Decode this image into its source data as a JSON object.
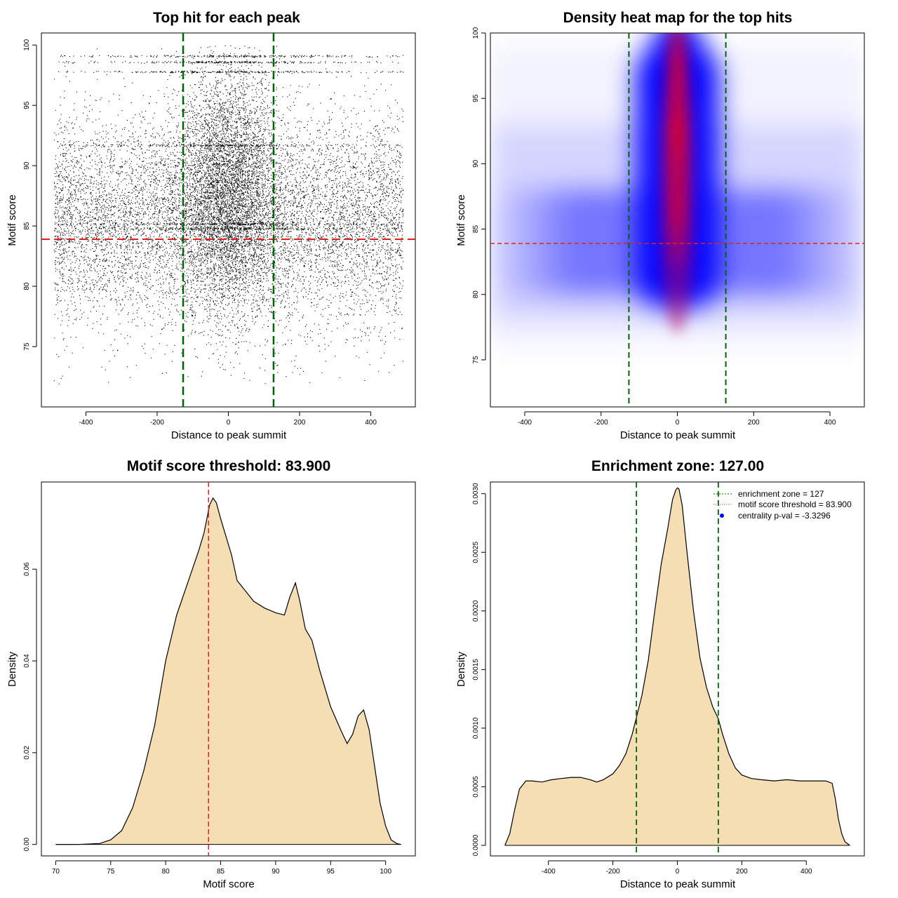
{
  "colors": {
    "threshold_line": "#e02020",
    "zone_line": "#006400",
    "density_fill": "#f5deb3",
    "heat_low": "#ffffff",
    "heat_mid": "#0000ff",
    "heat_high": "#ff0000",
    "points": "#000000"
  },
  "chart_data": [
    {
      "id": "scatter",
      "type": "scatter",
      "title": "Top hit for each peak",
      "xlabel": "Distance to peak summit",
      "ylabel": "Motif score",
      "xlim": [
        -525,
        525
      ],
      "ylim": [
        70,
        101
      ],
      "xticks": [
        "-400",
        "-200",
        "0",
        "200",
        "400"
      ],
      "xtick_values": [
        -400,
        -200,
        0,
        200,
        400
      ],
      "yticks": [
        "75",
        "80",
        "85",
        "90",
        "95",
        "100"
      ],
      "ytick_values": [
        75,
        80,
        85,
        90,
        95,
        100
      ],
      "hline": 83.9,
      "vlines": [
        -127,
        127
      ],
      "x_range_of_points": [
        -490,
        490
      ],
      "y_range_of_points": [
        71.9,
        100
      ],
      "dense_center_band": [
        -127,
        127
      ],
      "frequent_score_rows": [
        99.1,
        98.6,
        97.8,
        91.7,
        85.2,
        84.8
      ],
      "grid": false
    },
    {
      "id": "heatmap",
      "type": "heatmap",
      "title": "Density heat map for the top hits",
      "xlabel": "Distance to peak summit",
      "ylabel": "Motif score",
      "xlim": [
        -490,
        490
      ],
      "ylim": [
        71.4,
        100
      ],
      "xticks": [
        "-400",
        "-200",
        "0",
        "200",
        "400"
      ],
      "xtick_values": [
        -400,
        -200,
        0,
        200,
        400
      ],
      "yticks": [
        "75",
        "80",
        "85",
        "90",
        "95",
        "100"
      ],
      "ytick_values": [
        75,
        80,
        85,
        90,
        95,
        100
      ],
      "hline": 83.9,
      "vlines": [
        -127,
        127
      ],
      "hotspots": [
        {
          "x": 0,
          "y": 92.5,
          "intensity": 1.0
        },
        {
          "x": 0,
          "y": 86,
          "intensity": 0.75
        },
        {
          "x": 0,
          "y": 98,
          "intensity": 0.65
        }
      ],
      "grid": false
    },
    {
      "id": "score-density",
      "type": "area",
      "title": "Motif score threshold: 83.900",
      "xlabel": "Motif score",
      "ylabel": "Density",
      "xlim": [
        68.7,
        102.7
      ],
      "ylim": [
        -0.0025,
        0.079
      ],
      "xticks": [
        "70",
        "75",
        "80",
        "85",
        "90",
        "95",
        "100"
      ],
      "xtick_values": [
        70,
        75,
        80,
        85,
        90,
        95,
        100
      ],
      "yticks": [
        "0.00",
        "0.02",
        "0.04",
        "0.06"
      ],
      "ytick_values": [
        0,
        0.02,
        0.04,
        0.06
      ],
      "vline": 83.9,
      "x": [
        70,
        72,
        74,
        75,
        76,
        77,
        78,
        79,
        80,
        81,
        82,
        83,
        83.5,
        84,
        84.3,
        84.6,
        85,
        85.5,
        86,
        86.5,
        87,
        88,
        89,
        90,
        90.8,
        91.3,
        91.8,
        92.2,
        92.7,
        93.3,
        94,
        95,
        96,
        96.5,
        97,
        97.5,
        98,
        98.5,
        99,
        99.5,
        100,
        100.5,
        101,
        101.4
      ],
      "y": [
        0.0,
        0.0,
        0.0002,
        0.001,
        0.003,
        0.008,
        0.016,
        0.026,
        0.04,
        0.05,
        0.057,
        0.064,
        0.068,
        0.074,
        0.0755,
        0.0745,
        0.071,
        0.067,
        0.063,
        0.0575,
        0.056,
        0.053,
        0.0515,
        0.0505,
        0.05,
        0.054,
        0.057,
        0.053,
        0.047,
        0.0445,
        0.038,
        0.03,
        0.0245,
        0.022,
        0.024,
        0.028,
        0.0293,
        0.025,
        0.017,
        0.009,
        0.004,
        0.001,
        0.0002,
        0.0
      ],
      "grid": false
    },
    {
      "id": "distance-density",
      "type": "area",
      "title": "Enrichment zone: 127.00",
      "xlabel": "Distance to peak summit",
      "ylabel": "Density",
      "xlim": [
        -580,
        580
      ],
      "ylim": [
        -9e-05,
        0.0031
      ],
      "xticks": [
        "-400",
        "-200",
        "0",
        "200",
        "400"
      ],
      "xtick_values": [
        -400,
        -200,
        0,
        200,
        400
      ],
      "yticks": [
        "0.0000",
        "0.0005",
        "0.0010",
        "0.0015",
        "0.0020",
        "0.0025",
        "0.0030"
      ],
      "ytick_values": [
        0,
        0.0005,
        0.001,
        0.0015,
        0.002,
        0.0025,
        0.003
      ],
      "vlines": [
        -127,
        127
      ],
      "x": [
        -535,
        -520,
        -505,
        -490,
        -470,
        -450,
        -420,
        -390,
        -360,
        -330,
        -300,
        -270,
        -250,
        -230,
        -200,
        -180,
        -160,
        -140,
        -127,
        -110,
        -90,
        -70,
        -50,
        -30,
        -15,
        -5,
        0,
        5,
        15,
        30,
        50,
        70,
        90,
        110,
        127,
        140,
        160,
        180,
        200,
        230,
        260,
        300,
        340,
        380,
        420,
        460,
        480,
        490,
        500,
        510,
        520,
        535
      ],
      "y": [
        0.0,
        0.0001,
        0.0003,
        0.00048,
        0.00055,
        0.00055,
        0.00054,
        0.00056,
        0.00057,
        0.00058,
        0.00058,
        0.00056,
        0.00054,
        0.00056,
        0.00061,
        0.00068,
        0.00078,
        0.00095,
        0.00109,
        0.00128,
        0.00158,
        0.002,
        0.0024,
        0.0027,
        0.00295,
        0.00303,
        0.00305,
        0.00304,
        0.0029,
        0.0025,
        0.002,
        0.0016,
        0.00135,
        0.00118,
        0.00108,
        0.00095,
        0.00078,
        0.00066,
        0.0006,
        0.00057,
        0.00056,
        0.00055,
        0.00056,
        0.00055,
        0.00055,
        0.00055,
        0.00053,
        0.0004,
        0.00022,
        0.0001,
        3e-05,
        0.0
      ],
      "legend": {
        "position": "top-right",
        "entries": [
          {
            "label": "enrichment zone = 127",
            "style": "dashed-green"
          },
          {
            "label": "motif score threshold = 83.900",
            "style": "dotted-red"
          },
          {
            "label": "centrality p-val = -3.3296",
            "style": "blue-dot"
          }
        ]
      },
      "grid": false
    }
  ]
}
